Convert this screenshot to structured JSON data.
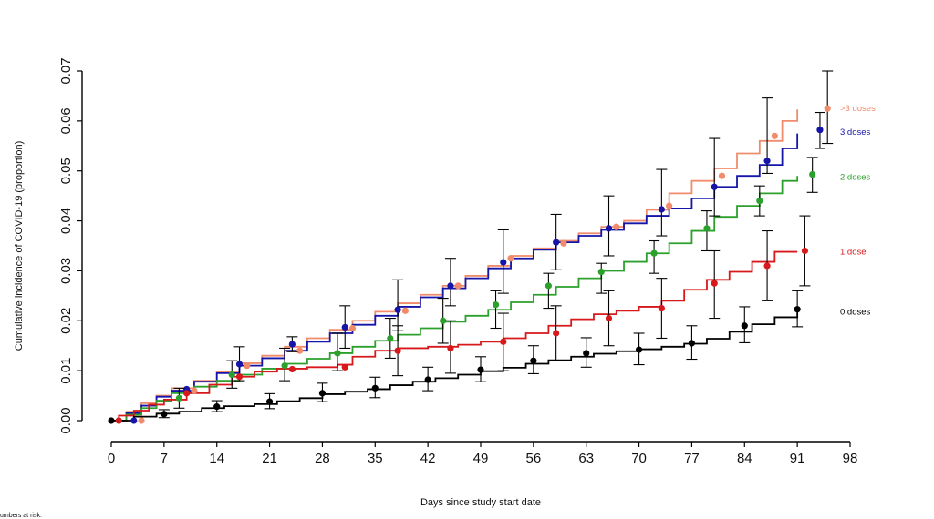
{
  "chart_data": {
    "type": "line",
    "title": "",
    "xlabel": "Days since study start date",
    "ylabel": "Cumulative incidence of COVID-19 (proportion)",
    "xlim": [
      0,
      98
    ],
    "ylim": [
      0,
      0.07
    ],
    "xticks": [
      0,
      7,
      14,
      21,
      28,
      35,
      42,
      49,
      56,
      63,
      70,
      77,
      84,
      91,
      98
    ],
    "yticks": [
      "0.00",
      "0.01",
      "0.02",
      "0.03",
      "0.04",
      "0.05",
      "0.06",
      "0.07"
    ],
    "grid": false,
    "legend": "labels at right end of each curve",
    "footnote": "umbers at risk:",
    "series": [
      {
        "name": "0 doses",
        "color": "#000000",
        "step": [
          [
            0,
            0
          ],
          [
            3,
            0.0008
          ],
          [
            6,
            0.0014
          ],
          [
            9,
            0.0018
          ],
          [
            12,
            0.0025
          ],
          [
            15,
            0.0029
          ],
          [
            19,
            0.0033
          ],
          [
            22,
            0.0039
          ],
          [
            25,
            0.0045
          ],
          [
            28,
            0.0053
          ],
          [
            31,
            0.0058
          ],
          [
            34,
            0.0063
          ],
          [
            37,
            0.0071
          ],
          [
            40,
            0.0078
          ],
          [
            43,
            0.0085
          ],
          [
            46,
            0.0092
          ],
          [
            49,
            0.0099
          ],
          [
            52,
            0.0106
          ],
          [
            55,
            0.0114
          ],
          [
            58,
            0.0121
          ],
          [
            61,
            0.0128
          ],
          [
            64,
            0.0134
          ],
          [
            67,
            0.0139
          ],
          [
            70,
            0.0143
          ],
          [
            73,
            0.0148
          ],
          [
            76,
            0.0154
          ],
          [
            79,
            0.0164
          ],
          [
            82,
            0.0178
          ],
          [
            85,
            0.0193
          ],
          [
            88,
            0.0207
          ],
          [
            91,
            0.0218
          ]
        ],
        "points": [
          [
            0,
            0.0
          ],
          [
            7,
            0.0013
          ],
          [
            14,
            0.0028
          ],
          [
            21,
            0.0038
          ],
          [
            28,
            0.0055
          ],
          [
            35,
            0.0065
          ],
          [
            42,
            0.0082
          ],
          [
            49,
            0.0102
          ],
          [
            56,
            0.012
          ],
          [
            63,
            0.0135
          ],
          [
            70,
            0.0142
          ],
          [
            77,
            0.0155
          ],
          [
            84,
            0.019
          ],
          [
            91,
            0.0223
          ]
        ],
        "err": [
          [
            7,
            0.0006,
            0.0022
          ],
          [
            14,
            0.0018,
            0.004
          ],
          [
            21,
            0.0024,
            0.0054
          ],
          [
            28,
            0.0038,
            0.0075
          ],
          [
            35,
            0.0046,
            0.0087
          ],
          [
            42,
            0.006,
            0.0107
          ],
          [
            49,
            0.0078,
            0.0128
          ],
          [
            56,
            0.0094,
            0.015
          ],
          [
            63,
            0.0107,
            0.0166
          ],
          [
            70,
            0.0112,
            0.0175
          ],
          [
            77,
            0.0123,
            0.019
          ],
          [
            84,
            0.0156,
            0.0228
          ],
          [
            91,
            0.0188,
            0.026
          ]
        ]
      },
      {
        "name": "1 dose",
        "color": "#d7191c",
        "step": [
          [
            0,
            0
          ],
          [
            1,
            0.001
          ],
          [
            3,
            0.002
          ],
          [
            5,
            0.0032
          ],
          [
            7,
            0.0042
          ],
          [
            10,
            0.0055
          ],
          [
            13,
            0.0072
          ],
          [
            16,
            0.0088
          ],
          [
            19,
            0.0098
          ],
          [
            22,
            0.0104
          ],
          [
            26,
            0.0107
          ],
          [
            30,
            0.0112
          ],
          [
            32,
            0.0128
          ],
          [
            35,
            0.014
          ],
          [
            38,
            0.0145
          ],
          [
            42,
            0.0148
          ],
          [
            46,
            0.0152
          ],
          [
            49,
            0.0158
          ],
          [
            52,
            0.0165
          ],
          [
            55,
            0.0175
          ],
          [
            58,
            0.019
          ],
          [
            61,
            0.0203
          ],
          [
            64,
            0.0213
          ],
          [
            67,
            0.022
          ],
          [
            70,
            0.0228
          ],
          [
            73,
            0.024
          ],
          [
            76,
            0.0262
          ],
          [
            79,
            0.0282
          ],
          [
            82,
            0.0298
          ],
          [
            85,
            0.0318
          ],
          [
            88,
            0.0338
          ],
          [
            91,
            0.0338
          ]
        ],
        "points": [
          [
            1,
            0.0
          ],
          [
            10,
            0.0055
          ],
          [
            17,
            0.0088
          ],
          [
            24,
            0.0103
          ],
          [
            31,
            0.0107
          ],
          [
            38,
            0.014
          ],
          [
            45,
            0.0145
          ],
          [
            52,
            0.0158
          ],
          [
            59,
            0.0175
          ],
          [
            66,
            0.0205
          ],
          [
            73,
            0.0225
          ],
          [
            80,
            0.0275
          ],
          [
            87,
            0.031
          ],
          [
            92,
            0.034
          ]
        ],
        "err": [
          [
            38,
            0.009,
            0.019
          ],
          [
            45,
            0.0095,
            0.02
          ],
          [
            52,
            0.01,
            0.0215
          ],
          [
            59,
            0.012,
            0.023
          ],
          [
            66,
            0.015,
            0.026
          ],
          [
            73,
            0.0165,
            0.0285
          ],
          [
            80,
            0.0205,
            0.034
          ],
          [
            87,
            0.024,
            0.038
          ],
          [
            92,
            0.027,
            0.041
          ]
        ]
      },
      {
        "name": "2 doses",
        "color": "#2ca02c",
        "step": [
          [
            0,
            0
          ],
          [
            2,
            0.0012
          ],
          [
            4,
            0.0025
          ],
          [
            6,
            0.004
          ],
          [
            8,
            0.0055
          ],
          [
            11,
            0.0068
          ],
          [
            14,
            0.008
          ],
          [
            17,
            0.0092
          ],
          [
            20,
            0.0104
          ],
          [
            23,
            0.0114
          ],
          [
            26,
            0.0124
          ],
          [
            29,
            0.0135
          ],
          [
            32,
            0.0148
          ],
          [
            35,
            0.016
          ],
          [
            38,
            0.0172
          ],
          [
            41,
            0.0185
          ],
          [
            44,
            0.0198
          ],
          [
            47,
            0.021
          ],
          [
            50,
            0.0222
          ],
          [
            53,
            0.0237
          ],
          [
            56,
            0.0252
          ],
          [
            59,
            0.0268
          ],
          [
            62,
            0.0285
          ],
          [
            65,
            0.03
          ],
          [
            68,
            0.0318
          ],
          [
            71,
            0.0335
          ],
          [
            74,
            0.0355
          ],
          [
            77,
            0.038
          ],
          [
            80,
            0.0408
          ],
          [
            83,
            0.043
          ],
          [
            86,
            0.0455
          ],
          [
            89,
            0.048
          ],
          [
            91,
            0.049
          ]
        ],
        "points": [
          [
            1,
            0.0
          ],
          [
            9,
            0.0045
          ],
          [
            16,
            0.0092
          ],
          [
            23,
            0.011
          ],
          [
            30,
            0.0135
          ],
          [
            37,
            0.0165
          ],
          [
            44,
            0.02
          ],
          [
            51,
            0.0232
          ],
          [
            58,
            0.027
          ],
          [
            65,
            0.0298
          ],
          [
            72,
            0.0335
          ],
          [
            79,
            0.0385
          ],
          [
            86,
            0.044
          ],
          [
            93,
            0.0493
          ]
        ],
        "err": [
          [
            9,
            0.0025,
            0.0065
          ],
          [
            16,
            0.0065,
            0.012
          ],
          [
            23,
            0.008,
            0.0145
          ],
          [
            30,
            0.01,
            0.0175
          ],
          [
            37,
            0.0125,
            0.0205
          ],
          [
            44,
            0.0155,
            0.0245
          ],
          [
            51,
            0.0185,
            0.026
          ],
          [
            58,
            0.0225,
            0.0295
          ],
          [
            65,
            0.0255,
            0.0315
          ],
          [
            72,
            0.0295,
            0.036
          ],
          [
            79,
            0.034,
            0.042
          ],
          [
            86,
            0.041,
            0.047
          ],
          [
            93,
            0.0457,
            0.0527
          ]
        ]
      },
      {
        "name": "3 doses",
        "color": "#1515a8",
        "step": [
          [
            0,
            0
          ],
          [
            2,
            0.0015
          ],
          [
            4,
            0.003
          ],
          [
            6,
            0.0048
          ],
          [
            8,
            0.006
          ],
          [
            11,
            0.0078
          ],
          [
            14,
            0.0095
          ],
          [
            17,
            0.011
          ],
          [
            20,
            0.0125
          ],
          [
            23,
            0.014
          ],
          [
            26,
            0.0158
          ],
          [
            29,
            0.0175
          ],
          [
            32,
            0.0192
          ],
          [
            35,
            0.021
          ],
          [
            38,
            0.0228
          ],
          [
            41,
            0.0247
          ],
          [
            44,
            0.0265
          ],
          [
            47,
            0.0285
          ],
          [
            50,
            0.0305
          ],
          [
            53,
            0.0325
          ],
          [
            56,
            0.0342
          ],
          [
            59,
            0.0357
          ],
          [
            62,
            0.037
          ],
          [
            65,
            0.0382
          ],
          [
            68,
            0.0395
          ],
          [
            71,
            0.041
          ],
          [
            74,
            0.0425
          ],
          [
            77,
            0.0445
          ],
          [
            80,
            0.0468
          ],
          [
            83,
            0.049
          ],
          [
            86,
            0.0512
          ],
          [
            89,
            0.0545
          ],
          [
            91,
            0.0575
          ]
        ],
        "points": [
          [
            3,
            0.0
          ],
          [
            10,
            0.0063
          ],
          [
            17,
            0.0113
          ],
          [
            24,
            0.0153
          ],
          [
            31,
            0.0187
          ],
          [
            38,
            0.0222
          ],
          [
            45,
            0.027
          ],
          [
            52,
            0.0317
          ],
          [
            59,
            0.0357
          ],
          [
            66,
            0.0385
          ],
          [
            73,
            0.0423
          ],
          [
            80,
            0.0468
          ],
          [
            87,
            0.052
          ],
          [
            94,
            0.0582
          ]
        ],
        "err": [
          [
            17,
            0.008,
            0.0148
          ],
          [
            24,
            0.0138,
            0.0168
          ],
          [
            31,
            0.0145,
            0.023
          ],
          [
            38,
            0.018,
            0.0282
          ],
          [
            45,
            0.023,
            0.0325
          ],
          [
            52,
            0.0255,
            0.0382
          ],
          [
            59,
            0.0302,
            0.0413
          ],
          [
            66,
            0.033,
            0.045
          ],
          [
            73,
            0.037,
            0.0503
          ],
          [
            80,
            0.041,
            0.0565
          ],
          [
            87,
            0.0495,
            0.0646
          ],
          [
            94,
            0.0545,
            0.0617
          ]
        ]
      },
      {
        "name": ">3 doses",
        "color": "#f08c6c",
        "step": [
          [
            0,
            0
          ],
          [
            2,
            0.0018
          ],
          [
            4,
            0.0035
          ],
          [
            6,
            0.005
          ],
          [
            8,
            0.0065
          ],
          [
            11,
            0.008
          ],
          [
            14,
            0.0098
          ],
          [
            17,
            0.0115
          ],
          [
            20,
            0.013
          ],
          [
            23,
            0.0148
          ],
          [
            26,
            0.0165
          ],
          [
            29,
            0.0182
          ],
          [
            32,
            0.02
          ],
          [
            35,
            0.0218
          ],
          [
            38,
            0.0235
          ],
          [
            41,
            0.0252
          ],
          [
            44,
            0.027
          ],
          [
            47,
            0.029
          ],
          [
            50,
            0.031
          ],
          [
            53,
            0.033
          ],
          [
            56,
            0.0345
          ],
          [
            59,
            0.036
          ],
          [
            62,
            0.0375
          ],
          [
            65,
            0.0388
          ],
          [
            68,
            0.04
          ],
          [
            71,
            0.0422
          ],
          [
            74,
            0.0455
          ],
          [
            77,
            0.048
          ],
          [
            80,
            0.0505
          ],
          [
            83,
            0.0535
          ],
          [
            86,
            0.056
          ],
          [
            89,
            0.06
          ],
          [
            91,
            0.0623
          ]
        ],
        "points": [
          [
            4,
            0.0
          ],
          [
            11,
            0.006
          ],
          [
            18,
            0.011
          ],
          [
            25,
            0.014
          ],
          [
            32,
            0.0185
          ],
          [
            39,
            0.022
          ],
          [
            46,
            0.027
          ],
          [
            53,
            0.0325
          ],
          [
            60,
            0.0355
          ],
          [
            67,
            0.0388
          ],
          [
            74,
            0.043
          ],
          [
            81,
            0.049
          ],
          [
            88,
            0.057
          ],
          [
            95,
            0.0625
          ]
        ],
        "err": [
          [
            95,
            0.0555,
            0.07
          ]
        ]
      }
    ],
    "labels": [
      {
        "text": ">3 doses",
        "y": 0.0625
      },
      {
        "text": "3 doses",
        "y": 0.0578
      },
      {
        "text": "2 doses",
        "y": 0.0488
      },
      {
        "text": "1 dose",
        "y": 0.0338
      },
      {
        "text": "0 doses",
        "y": 0.0218
      }
    ]
  }
}
